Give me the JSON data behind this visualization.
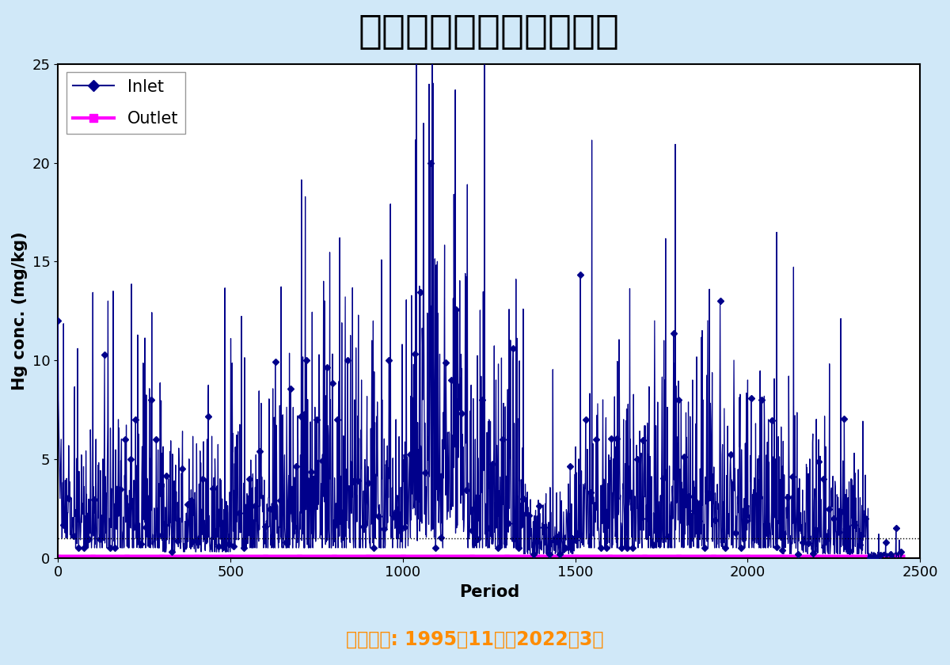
{
  "title": "水銀除去装置の稼動実績",
  "xlabel": "Period",
  "ylabel": "Hg conc. (mg/kg)",
  "subtitle": "運転開始: 1995年11月～2022年3月",
  "subtitle_color": "#FF8C00",
  "xlim": [
    0,
    2500
  ],
  "ylim": [
    0,
    25
  ],
  "yticks": [
    0,
    5,
    10,
    15,
    20,
    25
  ],
  "xticks": [
    0,
    500,
    1000,
    1500,
    2000,
    2500
  ],
  "inlet_color": "#00008B",
  "outlet_color": "#FF00FF",
  "background_color": "#D0E8F8",
  "plot_bg_color": "#FFFFFF",
  "dotted_line_y": 1.0,
  "legend_inlet": "Inlet",
  "legend_outlet": "Outlet",
  "title_fontsize": 36,
  "axis_label_fontsize": 15,
  "tick_fontsize": 13,
  "legend_fontsize": 15,
  "subtitle_fontsize": 17
}
